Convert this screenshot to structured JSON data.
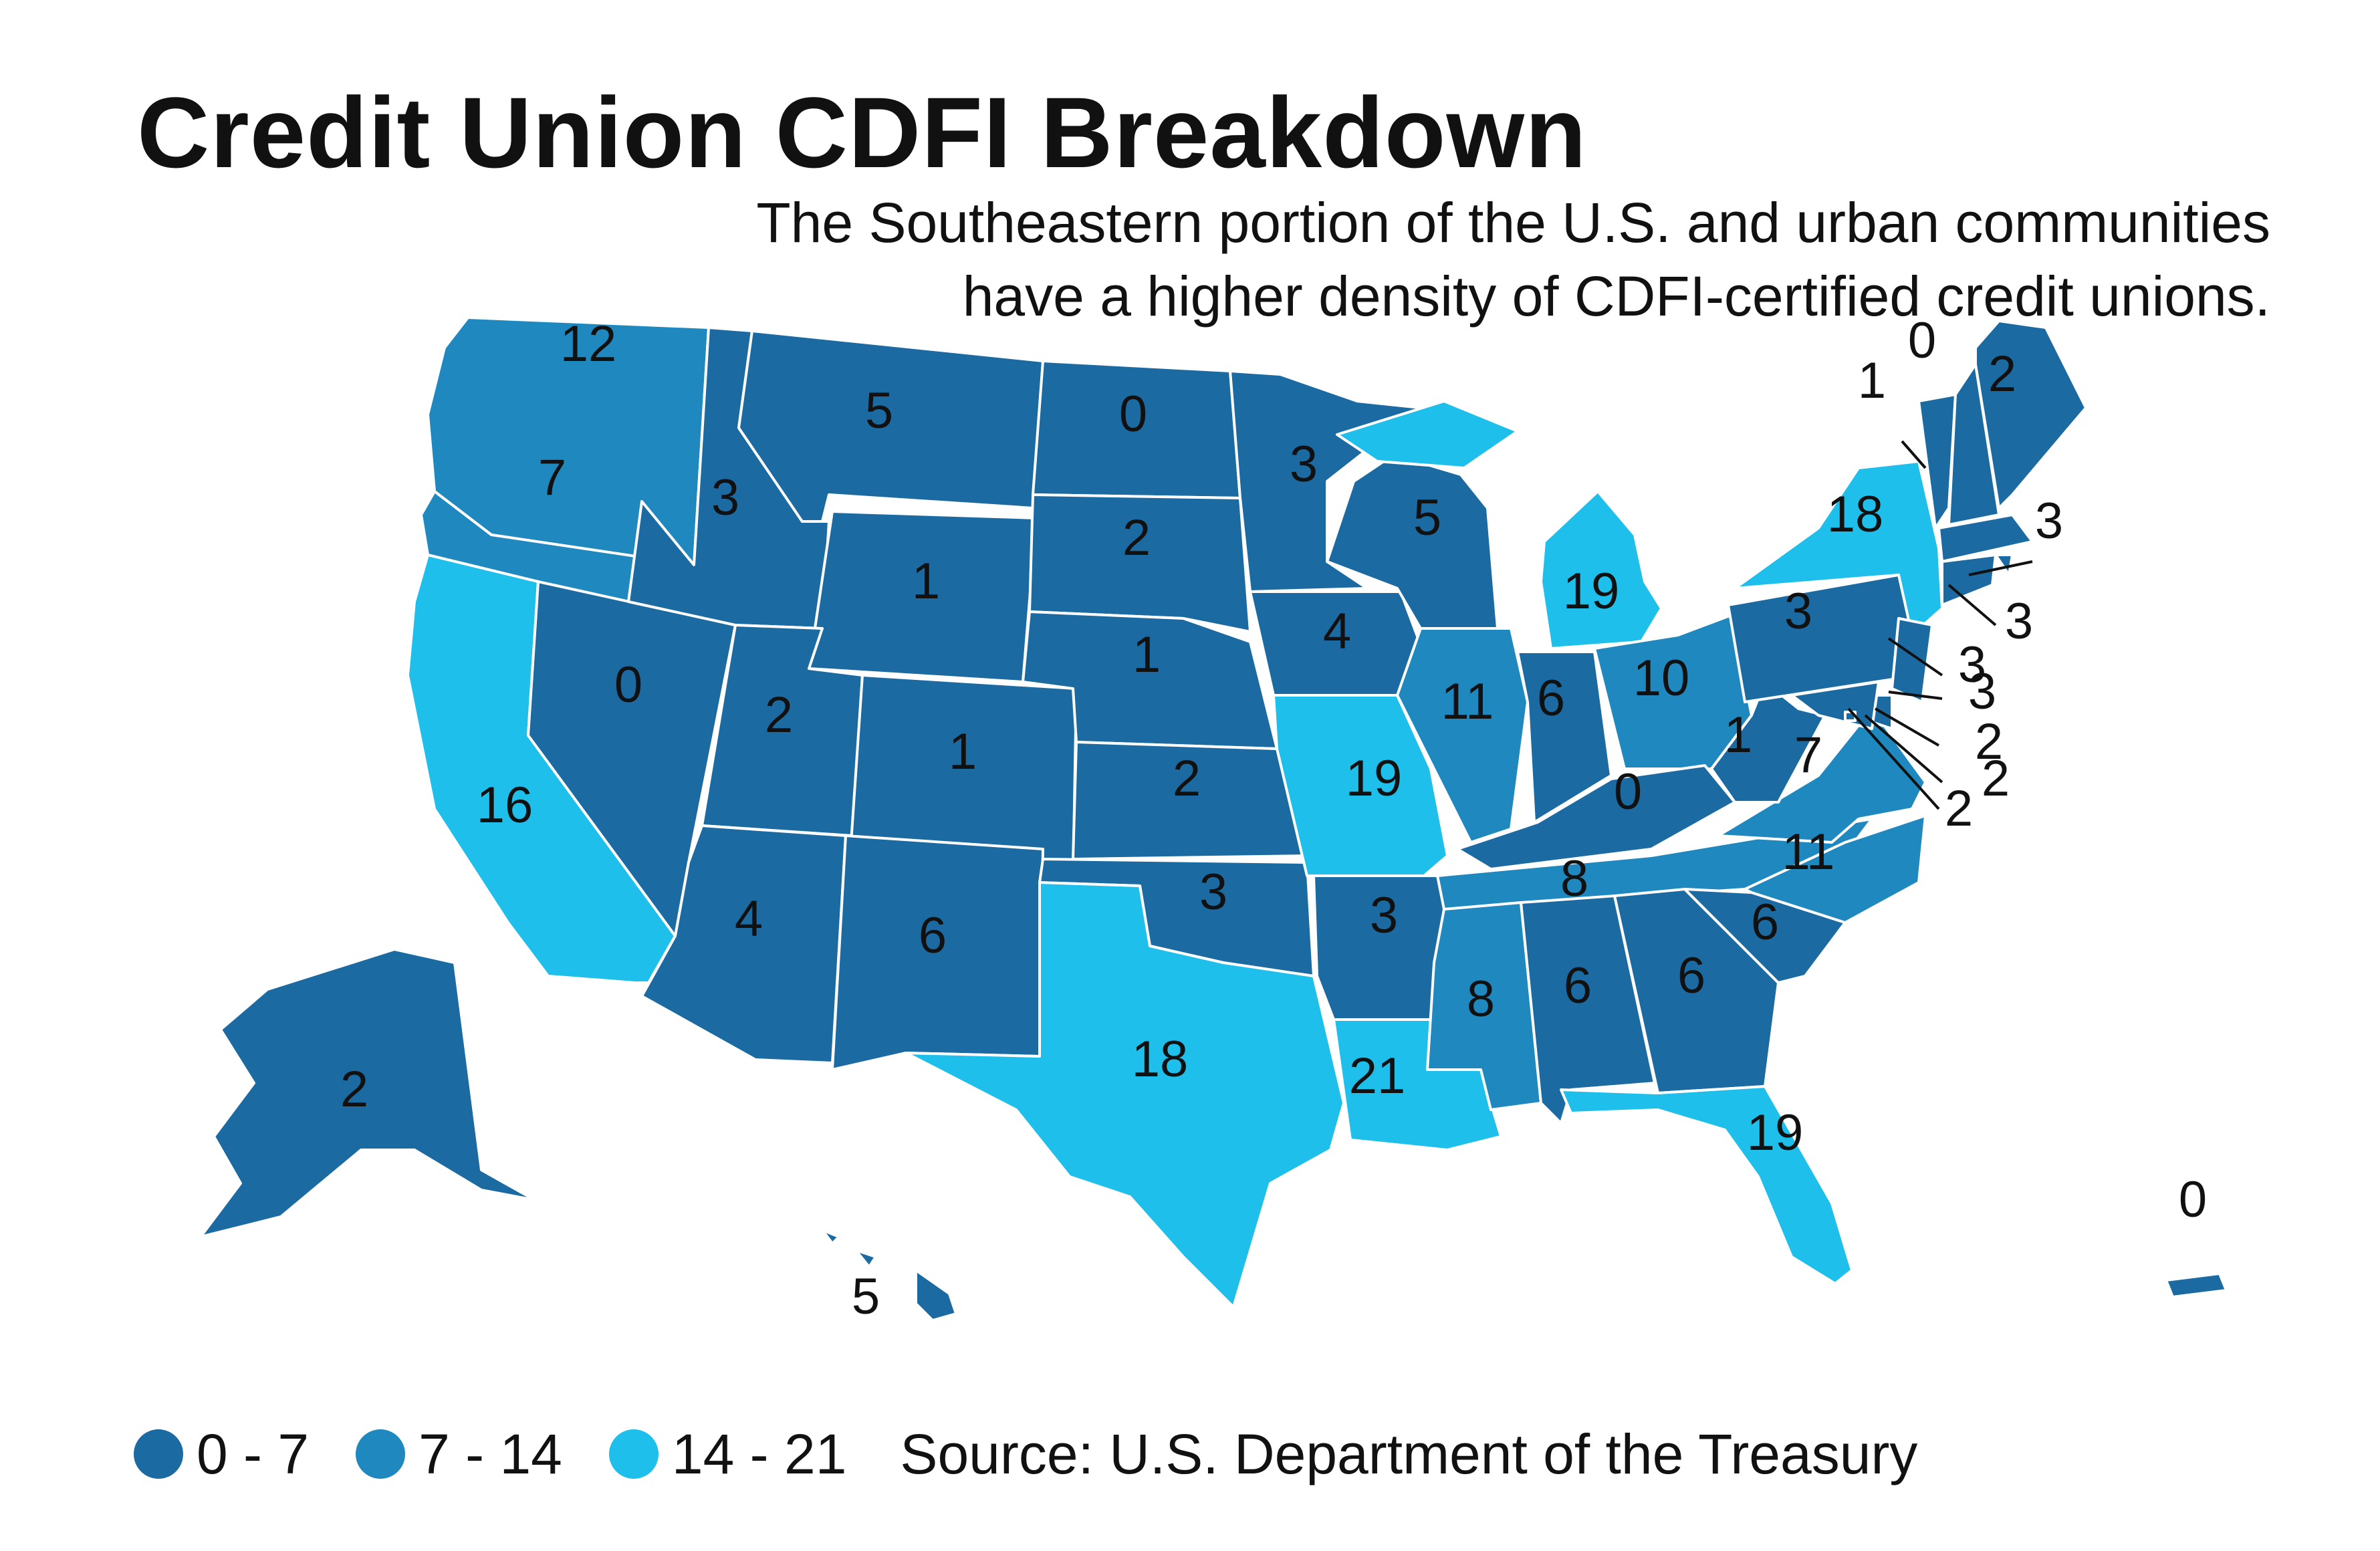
{
  "title": "Credit Union CDFI Breakdown",
  "subtitle": [
    "The Southeastern portion of the U.S. and urban communities",
    "have a higher density of CDFI-certified credit unions."
  ],
  "colors": {
    "dark": "#1c6aa2",
    "medium": "#1f88bf",
    "light": "#1ebfea",
    "border": "#ffffff"
  },
  "legend": [
    {
      "label": "0 - 7",
      "color": "#1c6aa2"
    },
    {
      "label": "7 - 14",
      "color": "#1f88bf"
    },
    {
      "label": "14 - 21",
      "color": "#1ebfea"
    }
  ],
  "source": "Source: U.S. Department of the Treasury",
  "states": [
    {
      "id": "WA",
      "value": 12,
      "bin": "medium"
    },
    {
      "id": "OR",
      "value": 7,
      "bin": "medium"
    },
    {
      "id": "CA",
      "value": 16,
      "bin": "light"
    },
    {
      "id": "NV",
      "value": 0,
      "bin": "dark"
    },
    {
      "id": "ID",
      "value": 3,
      "bin": "dark"
    },
    {
      "id": "MT",
      "value": 5,
      "bin": "dark"
    },
    {
      "id": "WY",
      "value": 1,
      "bin": "dark"
    },
    {
      "id": "UT",
      "value": 2,
      "bin": "dark"
    },
    {
      "id": "CO",
      "value": 1,
      "bin": "dark"
    },
    {
      "id": "AZ",
      "value": 4,
      "bin": "dark"
    },
    {
      "id": "NM",
      "value": 6,
      "bin": "dark"
    },
    {
      "id": "ND",
      "value": 0,
      "bin": "dark"
    },
    {
      "id": "SD",
      "value": 2,
      "bin": "dark"
    },
    {
      "id": "NE",
      "value": 1,
      "bin": "dark"
    },
    {
      "id": "KS",
      "value": 2,
      "bin": "dark"
    },
    {
      "id": "OK",
      "value": 3,
      "bin": "dark"
    },
    {
      "id": "TX",
      "value": 18,
      "bin": "light"
    },
    {
      "id": "MN",
      "value": 3,
      "bin": "dark"
    },
    {
      "id": "IA",
      "value": 4,
      "bin": "dark"
    },
    {
      "id": "MO",
      "value": 19,
      "bin": "light"
    },
    {
      "id": "AR",
      "value": 3,
      "bin": "dark"
    },
    {
      "id": "LA",
      "value": 21,
      "bin": "light"
    },
    {
      "id": "WI",
      "value": 5,
      "bin": "dark"
    },
    {
      "id": "IL",
      "value": 11,
      "bin": "medium"
    },
    {
      "id": "MI",
      "value": 19,
      "bin": "light"
    },
    {
      "id": "IN",
      "value": 6,
      "bin": "dark"
    },
    {
      "id": "OH",
      "value": 10,
      "bin": "medium"
    },
    {
      "id": "KY",
      "value": 0,
      "bin": "dark"
    },
    {
      "id": "TN",
      "value": 8,
      "bin": "medium"
    },
    {
      "id": "MS",
      "value": 8,
      "bin": "medium"
    },
    {
      "id": "AL",
      "value": 6,
      "bin": "dark"
    },
    {
      "id": "GA",
      "value": 6,
      "bin": "dark"
    },
    {
      "id": "FL",
      "value": 19,
      "bin": "light"
    },
    {
      "id": "SC",
      "value": 6,
      "bin": "dark"
    },
    {
      "id": "NC",
      "value": 11,
      "bin": "medium"
    },
    {
      "id": "VA",
      "value": 7,
      "bin": "medium"
    },
    {
      "id": "WV",
      "value": 1,
      "bin": "dark"
    },
    {
      "id": "PA",
      "value": 3,
      "bin": "dark"
    },
    {
      "id": "NY",
      "value": 18,
      "bin": "light"
    },
    {
      "id": "VT",
      "value": 1,
      "bin": "dark"
    },
    {
      "id": "NH",
      "value": 0,
      "bin": "dark"
    },
    {
      "id": "ME",
      "value": 2,
      "bin": "dark"
    },
    {
      "id": "MA",
      "value": 3,
      "bin": "dark"
    },
    {
      "id": "RI",
      "value": 3,
      "bin": "dark"
    },
    {
      "id": "CT",
      "value": 3,
      "bin": "dark"
    },
    {
      "id": "NJ",
      "value": 3,
      "bin": "dark"
    },
    {
      "id": "DE",
      "value": 2,
      "bin": "dark"
    },
    {
      "id": "MD",
      "value": 2,
      "bin": "dark"
    },
    {
      "id": "DC",
      "value": 2,
      "bin": "dark"
    },
    {
      "id": "AK",
      "value": 2,
      "bin": "dark"
    },
    {
      "id": "HI",
      "value": 5,
      "bin": "dark"
    },
    {
      "id": "PR",
      "value": 0,
      "bin": "dark"
    }
  ]
}
